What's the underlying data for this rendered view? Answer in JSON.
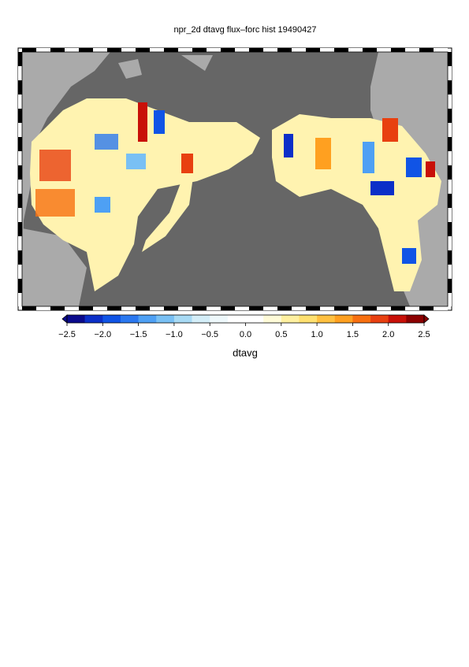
{
  "title": "npr_2d dtavg flux–forc hist 19490427",
  "colorbar": {
    "label": "dtavg",
    "range": [
      -2.5,
      2.5
    ],
    "ticks": [
      {
        "value": -2.5,
        "label": "−2.5"
      },
      {
        "value": -2.0,
        "label": "−2.0"
      },
      {
        "value": -1.5,
        "label": "−1.5"
      },
      {
        "value": -1.0,
        "label": "−1.0"
      },
      {
        "value": -0.5,
        "label": "−0.5"
      },
      {
        "value": 0.0,
        "label": "0.0"
      },
      0.5,
      {
        "value": 1.0,
        "label": "1.0"
      },
      1.5,
      {
        "value": 2.0,
        "label": "2.0"
      },
      2.5
    ],
    "colors": [
      "#0a0a8c",
      "#0b2fc8",
      "#1054e6",
      "#2a78f0",
      "#4ea0f4",
      "#79c0f4",
      "#a8daf4",
      "#d4eef8",
      "#eef8fb",
      "#ffffff",
      "#ffffff",
      "#fffbd8",
      "#fff0a0",
      "#ffe070",
      "#ffc040",
      "#ffa020",
      "#f87010",
      "#e84010",
      "#c81008",
      "#8c0000"
    ]
  }
}
